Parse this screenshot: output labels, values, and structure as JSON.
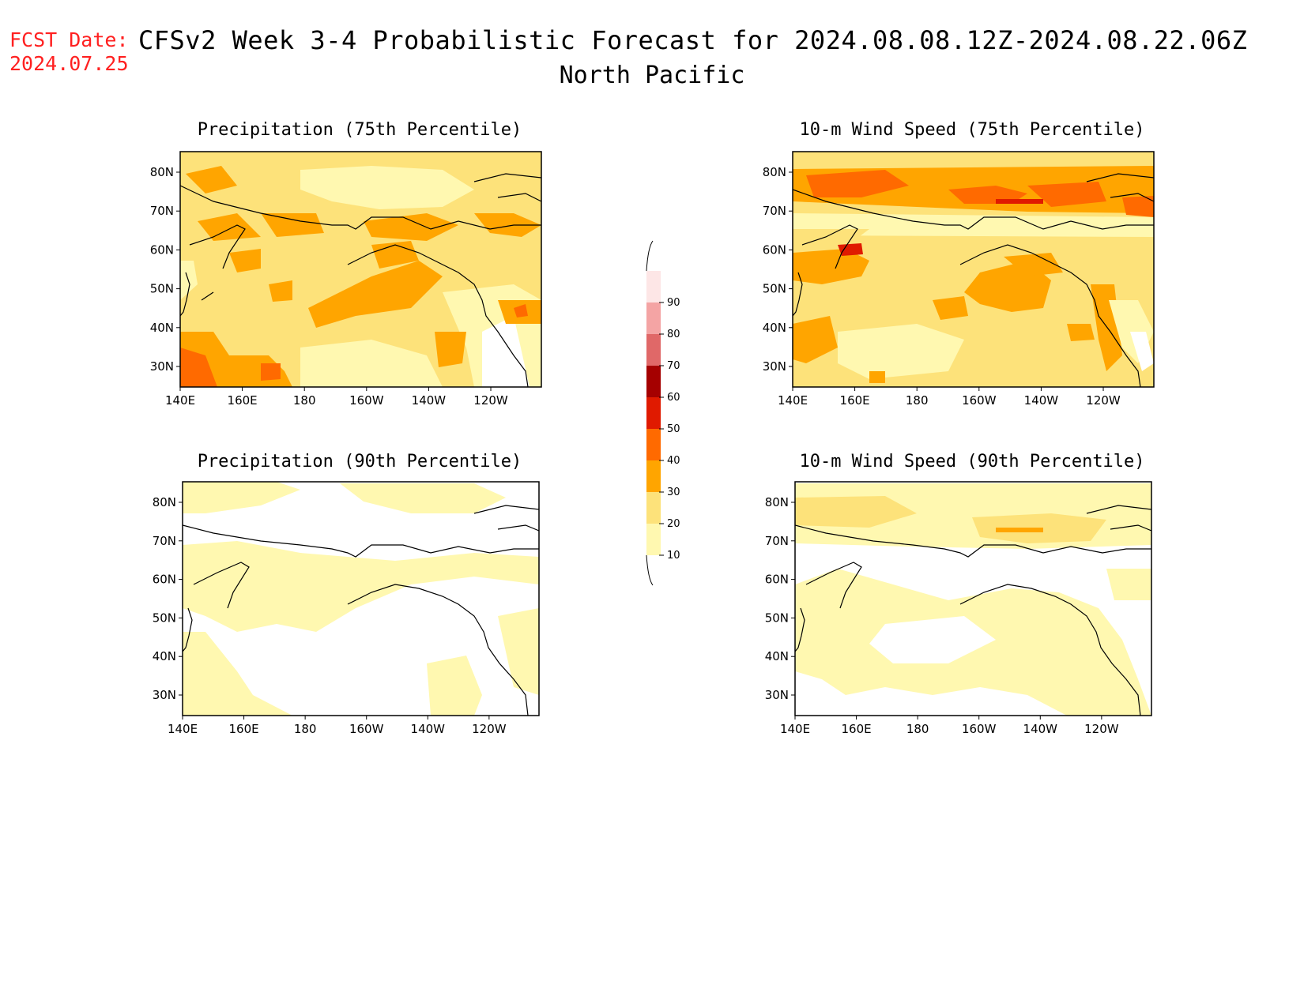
{
  "header": {
    "fcst_label": "FCST Date:",
    "fcst_date": "2024.07.25",
    "title": "CFSv2 Week 3-4 Probabilistic Forecast for 2024.08.08.12Z-2024.08.22.06Z",
    "region": "North Pacific"
  },
  "panels": [
    {
      "title": "Precipitation (75th Percentile)"
    },
    {
      "title": "10-m Wind Speed (75th Percentile)"
    },
    {
      "title": "Precipitation (90th Percentile)"
    },
    {
      "title": "10-m Wind Speed (90th Percentile)"
    }
  ],
  "axes": {
    "lat_labels": [
      "80N",
      "70N",
      "60N",
      "50N",
      "40N",
      "30N"
    ],
    "lon_labels": [
      "140E",
      "160E",
      "180",
      "160W",
      "140W",
      "120W"
    ]
  },
  "colorbar": {
    "levels": [
      "10",
      "20",
      "30",
      "40",
      "50",
      "60",
      "70",
      "80",
      "90"
    ],
    "colors": [
      "#fff8b0",
      "#fde27a",
      "#ffa500",
      "#ff6a00",
      "#e01a00",
      "#a50000",
      "#e06868",
      "#f4a4a4",
      "#fde6e6"
    ]
  }
}
